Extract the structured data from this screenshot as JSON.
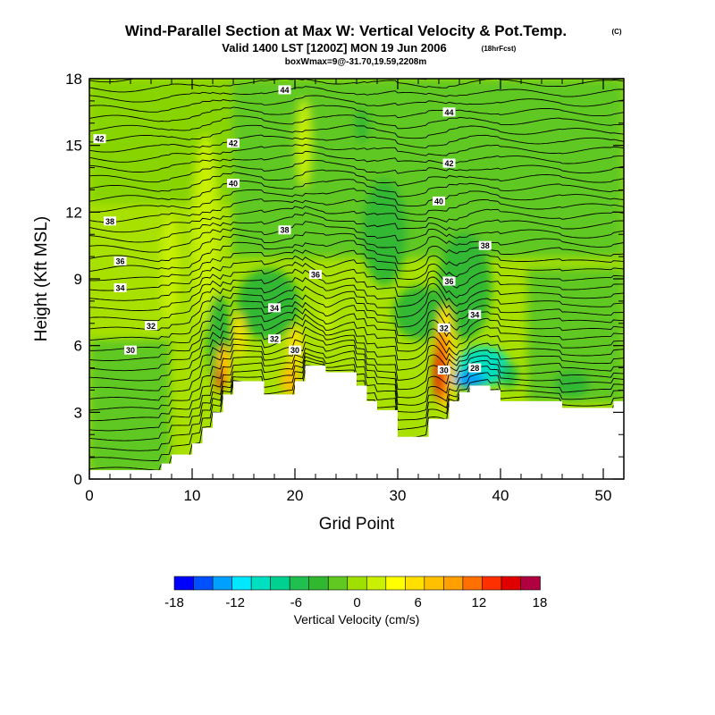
{
  "title": {
    "main": "Wind-Parallel Section at Max W: Vertical Velocity & Pot.Temp.",
    "copyright": "(C)",
    "valid": "Valid 1400 LST [1200Z] MON 19 Jun 2006",
    "forecast": "(18hrFcst)",
    "box": "boxWmax=9@-31.70,19.59,2208m"
  },
  "colors": {
    "terrain": "#ffffff",
    "contour": "#000000",
    "palette": [
      "#0000ff",
      "#0050ff",
      "#00a0ff",
      "#00e8ff",
      "#00e0c0",
      "#00d090",
      "#20c050",
      "#30b830",
      "#60c820",
      "#a0e000",
      "#c8f000",
      "#ffff00",
      "#ffe000",
      "#ffc000",
      "#ffa000",
      "#ff7000",
      "#ff3000",
      "#e00000",
      "#b00040"
    ]
  },
  "chart_data": {
    "type": "contour-section",
    "xlabel": "Grid Point",
    "ylabel": "Height (Kft MSL)",
    "xlim": [
      0,
      52
    ],
    "ylim": [
      0,
      18
    ],
    "xticks": [
      0,
      10,
      20,
      30,
      40,
      50
    ],
    "yticks": [
      0,
      3,
      6,
      9,
      12,
      15,
      18
    ],
    "terrain": [
      [
        0,
        0.4
      ],
      [
        7,
        0.4
      ],
      [
        7,
        0.7
      ],
      [
        8,
        0.7
      ],
      [
        8,
        1.1
      ],
      [
        10,
        1.1
      ],
      [
        10,
        1.6
      ],
      [
        11,
        1.6
      ],
      [
        11,
        2.3
      ],
      [
        12,
        2.3
      ],
      [
        12,
        3.0
      ],
      [
        13,
        3.0
      ],
      [
        13,
        3.8
      ],
      [
        14,
        3.8
      ],
      [
        14,
        4.4
      ],
      [
        17,
        4.4
      ],
      [
        17,
        3.8
      ],
      [
        20,
        3.8
      ],
      [
        20,
        4.4
      ],
      [
        21,
        4.4
      ],
      [
        21,
        5.1
      ],
      [
        23,
        5.1
      ],
      [
        23,
        4.8
      ],
      [
        26,
        4.8
      ],
      [
        26,
        4.2
      ],
      [
        27,
        4.2
      ],
      [
        27,
        3.5
      ],
      [
        28,
        3.5
      ],
      [
        28,
        3.1
      ],
      [
        30,
        3.1
      ],
      [
        30,
        1.9
      ],
      [
        33,
        1.9
      ],
      [
        33,
        2.7
      ],
      [
        35,
        2.7
      ],
      [
        35,
        3.5
      ],
      [
        36,
        3.5
      ],
      [
        36,
        3.9
      ],
      [
        37,
        3.9
      ],
      [
        37,
        4.2
      ],
      [
        39,
        4.2
      ],
      [
        39,
        4.0
      ],
      [
        40,
        4.0
      ],
      [
        40,
        3.5
      ],
      [
        46,
        3.5
      ],
      [
        46,
        3.2
      ],
      [
        51,
        3.2
      ],
      [
        51,
        3.5
      ],
      [
        52,
        3.5
      ]
    ],
    "theta_labels": [
      {
        "text": "44",
        "x": 19.0,
        "y": 17.5
      },
      {
        "text": "44",
        "x": 35.0,
        "y": 16.5
      },
      {
        "text": "42",
        "x": 1.0,
        "y": 15.3
      },
      {
        "text": "42",
        "x": 14.0,
        "y": 15.1
      },
      {
        "text": "42",
        "x": 35.0,
        "y": 14.2
      },
      {
        "text": "40",
        "x": 14.0,
        "y": 13.3
      },
      {
        "text": "40",
        "x": 34.0,
        "y": 12.5
      },
      {
        "text": "38",
        "x": 2.0,
        "y": 11.6
      },
      {
        "text": "38",
        "x": 19.0,
        "y": 11.2
      },
      {
        "text": "38",
        "x": 38.5,
        "y": 10.5
      },
      {
        "text": "36",
        "x": 3.0,
        "y": 9.8
      },
      {
        "text": "36",
        "x": 22.0,
        "y": 9.2
      },
      {
        "text": "36",
        "x": 35.0,
        "y": 8.9
      },
      {
        "text": "34",
        "x": 3.0,
        "y": 8.6
      },
      {
        "text": "34",
        "x": 18.0,
        "y": 7.7
      },
      {
        "text": "34",
        "x": 37.5,
        "y": 7.4
      },
      {
        "text": "32",
        "x": 6.0,
        "y": 6.9
      },
      {
        "text": "32",
        "x": 18.0,
        "y": 6.3
      },
      {
        "text": "32",
        "x": 34.5,
        "y": 6.8
      },
      {
        "text": "30",
        "x": 4.0,
        "y": 5.8
      },
      {
        "text": "30",
        "x": 20.0,
        "y": 5.8
      },
      {
        "text": "30",
        "x": 34.5,
        "y": 4.9
      },
      {
        "text": "28",
        "x": 37.5,
        "y": 5.0
      }
    ],
    "colorbar": {
      "label": "Vertical Velocity (cm/s)",
      "ticks": [
        "-18",
        "-12",
        "-6",
        "0",
        "6",
        "12",
        "18"
      ]
    }
  }
}
